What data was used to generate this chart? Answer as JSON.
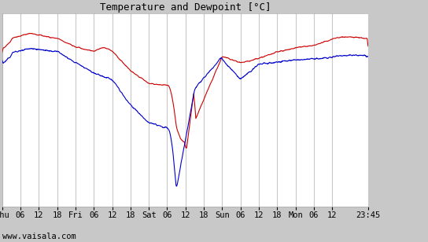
{
  "title": "Temperature and Dewpoint [°C]",
  "background_color": "#c8c8c8",
  "plot_background": "#ffffff",
  "grid_color": "#c8c8c8",
  "temp_color": "#cc0000",
  "dewpoint_color": "#0000cc",
  "line_width": 0.8,
  "ylim": [
    -21,
    6
  ],
  "yticks": [
    -20,
    -15,
    -10,
    -5,
    0,
    5
  ],
  "xlabel_bottom": "www.vaisala.com",
  "xtick_labels": [
    "Thu",
    "06",
    "12",
    "18",
    "Fri",
    "06",
    "12",
    "18",
    "Sat",
    "06",
    "12",
    "18",
    "Sun",
    "06",
    "12",
    "18",
    "Mon",
    "06",
    "12",
    "23:45"
  ],
  "xtick_positions": [
    0,
    6,
    12,
    18,
    24,
    30,
    36,
    42,
    48,
    54,
    60,
    66,
    72,
    78,
    84,
    90,
    96,
    102,
    108,
    119.75
  ],
  "x_total_hours": 119.75
}
